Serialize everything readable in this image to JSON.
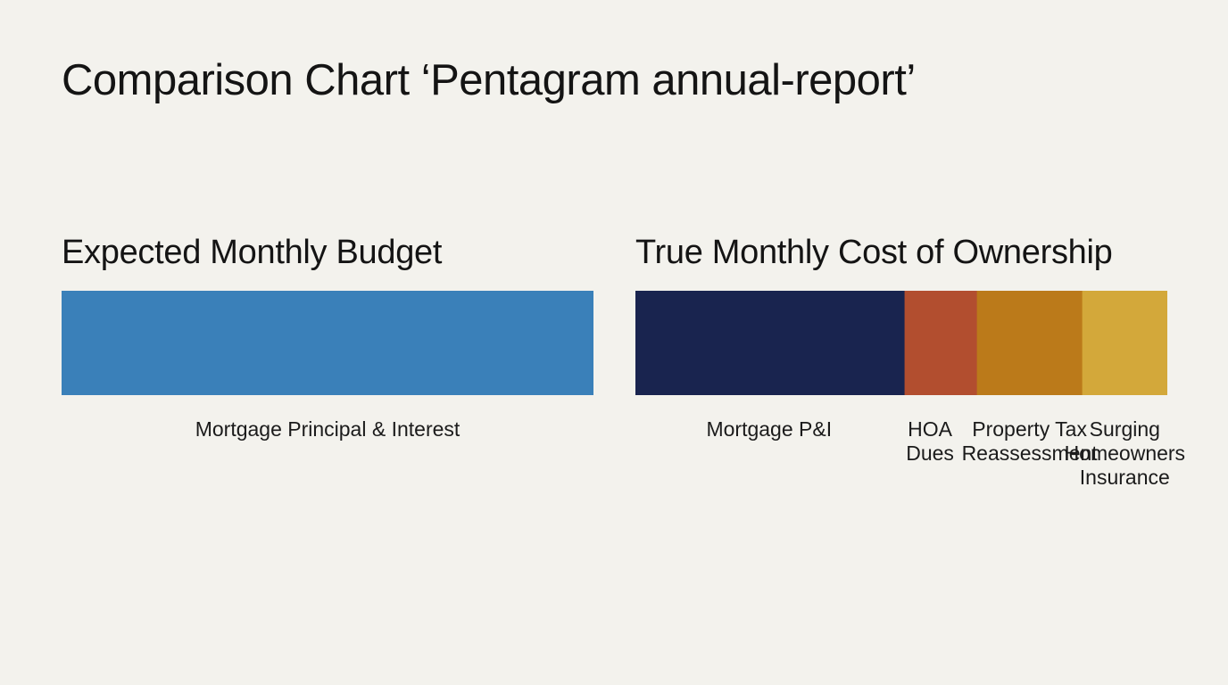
{
  "page": {
    "title": "Comparison Chart ‘Pentagram annual-report’"
  },
  "chart_data": [
    {
      "type": "bar",
      "orientation": "horizontal-stacked",
      "title": "Expected Monthly Budget",
      "total": 1.0,
      "segments": [
        {
          "label": "Mortgage Principal & Interest",
          "share": 1.0,
          "color": "#3a80b9"
        }
      ]
    },
    {
      "type": "bar",
      "orientation": "horizontal-stacked",
      "title": "True Monthly Cost of Ownership",
      "total": 1.0,
      "segments": [
        {
          "label": "Mortgage P&I",
          "share": 0.506,
          "color": "#19244f"
        },
        {
          "label": "HOA\nDues",
          "share": 0.136,
          "color": "#b24e2f"
        },
        {
          "label": "Property Tax\nReassessment",
          "share": 0.198,
          "color": "#bb7a1a"
        },
        {
          "label": "Surging\nHomeowners\nInsurance",
          "share": 0.16,
          "color": "#d3a83a"
        }
      ]
    }
  ]
}
